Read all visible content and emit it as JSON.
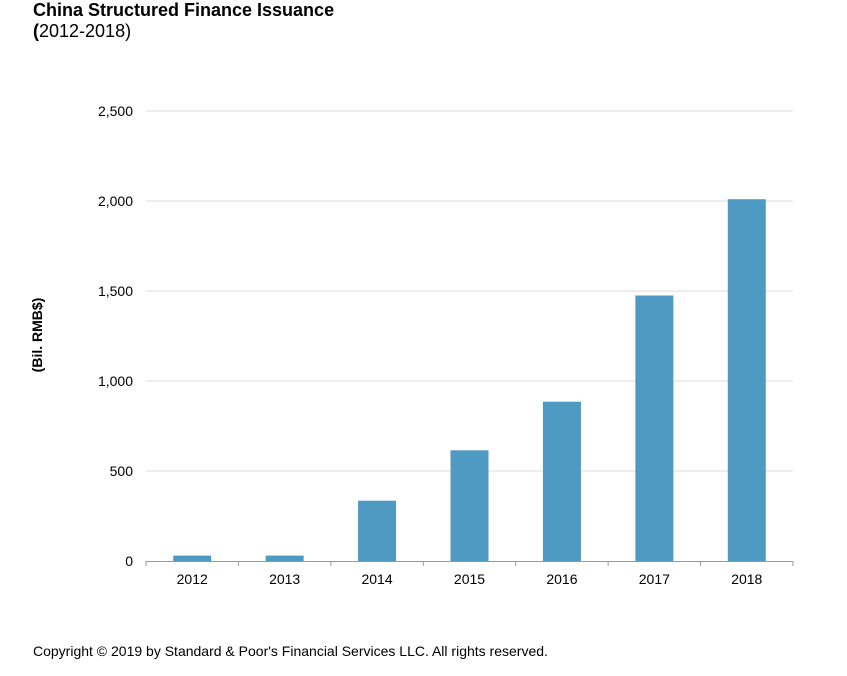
{
  "header": {
    "title": "China Structured Finance Issuance",
    "subtitle_paren": "(",
    "subtitle_rest": "2012-2018)"
  },
  "footer": {
    "copyright": "Copyright © 2019 by Standard & Poor's Financial Services LLC. All rights reserved."
  },
  "chart_data": {
    "type": "bar",
    "categories": [
      "2012",
      "2013",
      "2014",
      "2015",
      "2016",
      "2017",
      "2018"
    ],
    "values": [
      30,
      30,
      335,
      615,
      885,
      1475,
      2010
    ],
    "title": "China Structured Finance Issuance",
    "subtitle": "(2012-2018)",
    "xlabel": "",
    "ylabel": "(Bil. RMB$)",
    "ylim": [
      0,
      2500
    ],
    "yticks": [
      0,
      500,
      1000,
      1500,
      2000,
      2500
    ],
    "ytick_labels": [
      "0",
      "500",
      "1,000",
      "1,500",
      "2,000",
      "2,500"
    ],
    "grid": true,
    "legend": "none",
    "bar_color": "#4f9ac3",
    "grid_color": "#dddddd",
    "axis_color": "#999999"
  }
}
